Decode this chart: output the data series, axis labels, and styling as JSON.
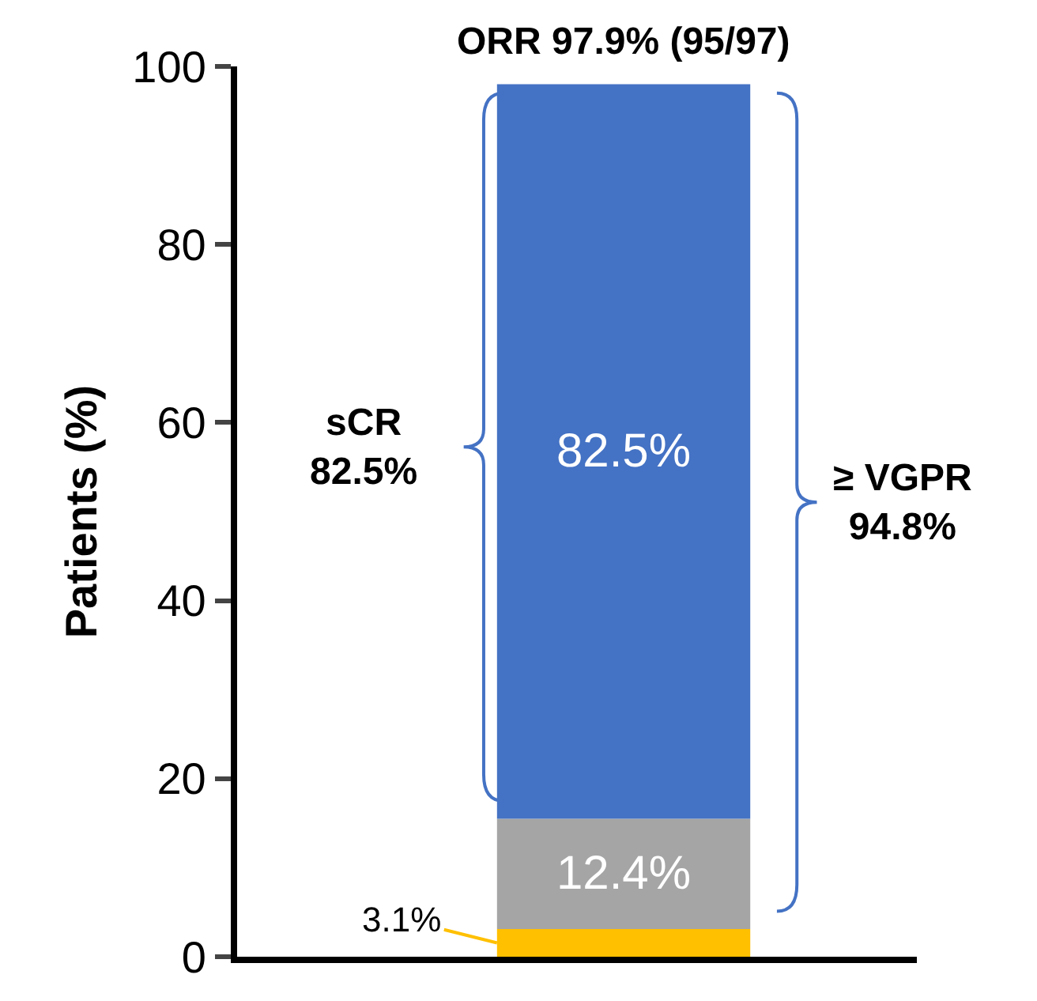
{
  "chart_data": {
    "type": "bar",
    "stacked": true,
    "title": "ORR 97.9% (95/97)",
    "ylabel": "Patients (%)",
    "categories": [
      null
    ],
    "series": [
      {
        "color": "#ffc000",
        "values": [
          3.1
        ],
        "value_labels": [
          "3.1%"
        ]
      },
      {
        "color": "#a5a5a5",
        "values": [
          12.4
        ],
        "value_labels": [
          "12.4%"
        ]
      },
      {
        "color": "#4472c4",
        "values": [
          82.5
        ],
        "value_labels": [
          "82.5%"
        ]
      }
    ],
    "ylim": [
      0,
      100
    ],
    "yticks": [
      0,
      20,
      40,
      60,
      80,
      100
    ],
    "annotations": [
      "sCR\n82.5%",
      "≥ VGPR\n94.8%"
    ]
  }
}
